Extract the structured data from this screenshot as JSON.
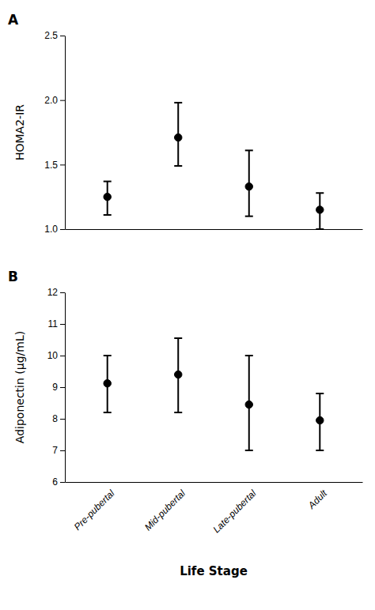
{
  "chart_data": [
    {
      "type": "scatter",
      "title": "A",
      "categories": [
        null,
        null,
        null,
        null
      ],
      "values": [
        1.25,
        1.71,
        1.33,
        1.15
      ],
      "error_upper": [
        0.12,
        0.27,
        0.28,
        0.13
      ],
      "error_lower": [
        0.14,
        0.22,
        0.23,
        0.15
      ],
      "y_label": "HOMA2-IR",
      "ylim": [
        1.0,
        2.5
      ],
      "yticks": [
        {
          "value": 1.0,
          "label": "1.0"
        },
        1.5,
        {
          "value": 2.0,
          "label": "2.0"
        },
        2.5
      ],
      "color": "#000000",
      "marker": "circle",
      "grid": false
    },
    {
      "type": "scatter",
      "title": "B",
      "categories": [
        "Pre-pubertal",
        "Mid-pubertal",
        "Late-pubertal",
        "Adult"
      ],
      "values": [
        9.12,
        9.4,
        8.45,
        7.95
      ],
      "error_upper": [
        0.88,
        1.15,
        1.55,
        0.85
      ],
      "error_lower": [
        0.92,
        1.2,
        1.45,
        0.95
      ],
      "y_label": "Adiponectin (μg/mL)",
      "x_label": "Life Stage",
      "ylim": [
        6,
        12
      ],
      "yticks": [
        6,
        7,
        8,
        9,
        10,
        11,
        12
      ],
      "color": "#000000",
      "marker": "circle",
      "grid": false
    }
  ]
}
